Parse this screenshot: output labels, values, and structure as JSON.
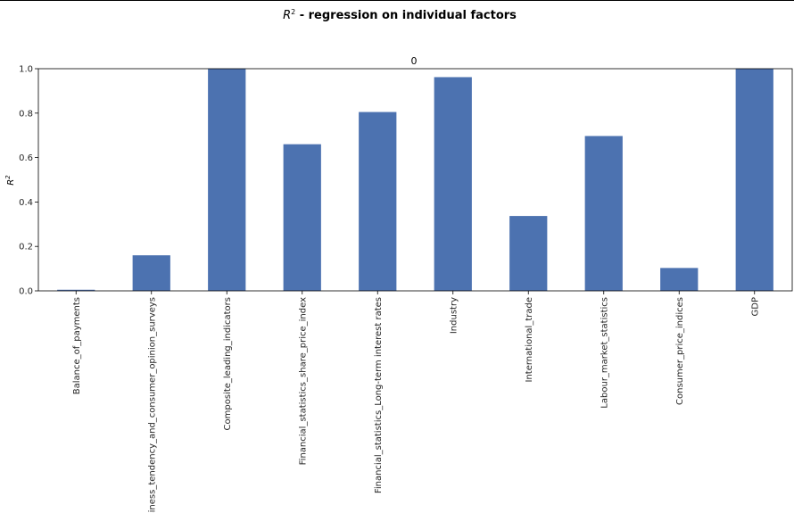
{
  "chart_data": {
    "type": "bar",
    "title": "R² - regression on individual factors",
    "title_math": "R",
    "title_sup": "2",
    "title_rest": " - regression on individual factors",
    "subtitle": "0",
    "ylabel": "R²",
    "ylabel_math": "R",
    "ylabel_sup": "2",
    "xlabel": "",
    "ylim": [
      0,
      1.0
    ],
    "yticks": [
      "0.0",
      "0.2",
      "0.4",
      "0.6",
      "0.8",
      "1.0"
    ],
    "grid": false,
    "bar_color": "#4c72b0",
    "categories": [
      "Balance_of_payments",
      "Business_tendency_and_consumer_opinion_surveys",
      "Composite_leading_indicators",
      "Financial_statistics_share_price_index",
      "Financial_statistics_Long-term interest rates",
      "Industry",
      "International_trade",
      "Labour_market_statistics",
      "Consumer_price_indices",
      "GDP"
    ],
    "values": [
      0.005,
      0.16,
      1.0,
      0.66,
      0.805,
      0.962,
      0.337,
      0.697,
      0.103,
      1.0
    ]
  }
}
